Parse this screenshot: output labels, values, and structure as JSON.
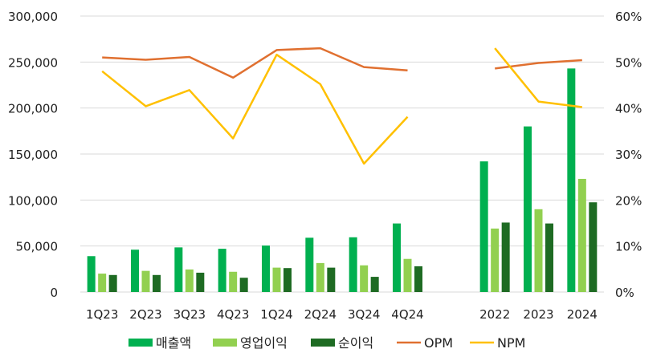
{
  "chart_data": {
    "type": "bar",
    "categories": [
      "1Q23",
      "2Q23",
      "3Q23",
      "4Q23",
      "1Q24",
      "2Q24",
      "3Q24",
      "4Q24",
      "",
      "2022",
      "2023",
      "2024"
    ],
    "series": [
      {
        "name": "매출액",
        "kind": "bar",
        "axis": "left",
        "color": "#00b050",
        "values": [
          39000,
          46000,
          48500,
          47000,
          50500,
          59000,
          59500,
          74500,
          null,
          142000,
          180000,
          243000
        ]
      },
      {
        "name": "영업이익",
        "kind": "bar",
        "axis": "left",
        "color": "#92d050",
        "values": [
          20000,
          23000,
          24500,
          22000,
          26500,
          31500,
          29000,
          36000,
          null,
          69000,
          90000,
          123000
        ]
      },
      {
        "name": "순이익",
        "kind": "bar",
        "axis": "left",
        "color": "#1e6b23",
        "values": [
          18500,
          18500,
          21000,
          15500,
          26000,
          26500,
          16500,
          28000,
          null,
          75500,
          74500,
          97500
        ]
      },
      {
        "name": "OPM",
        "kind": "line",
        "axis": "right",
        "color": "#e07030",
        "values": [
          51.0,
          50.5,
          51.1,
          46.6,
          52.6,
          53.0,
          48.9,
          48.2,
          null,
          48.6,
          49.8,
          50.4
        ]
      },
      {
        "name": "NPM",
        "kind": "line",
        "axis": "right",
        "color": "#ffc000",
        "values": [
          48.0,
          40.4,
          43.9,
          33.4,
          51.6,
          45.2,
          27.9,
          38.1,
          null,
          53.0,
          41.4,
          40.2
        ]
      }
    ],
    "y_left": {
      "min": 0,
      "max": 300000,
      "step": 50000,
      "tick_labels": [
        "0",
        "50,000",
        "100,000",
        "150,000",
        "200,000",
        "250,000",
        "300,000"
      ]
    },
    "y_right": {
      "min": 0,
      "max": 60,
      "step": 10,
      "tick_labels": [
        "0%",
        "10%",
        "20%",
        "30%",
        "40%",
        "50%",
        "60%"
      ]
    },
    "grid": true,
    "legend_position": "bottom"
  }
}
